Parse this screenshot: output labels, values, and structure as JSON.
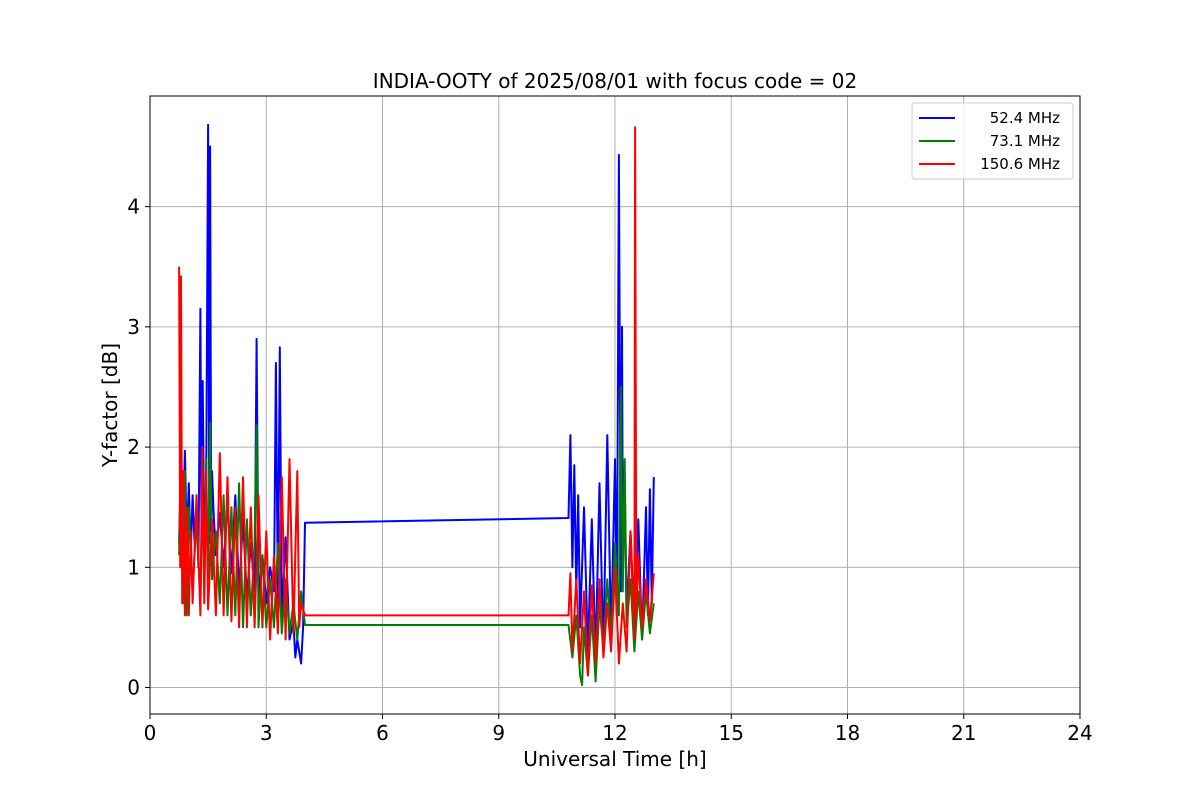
{
  "chart_data": {
    "type": "line",
    "title": "INDIA-OOTY of 2025/08/01 with focus code = 02",
    "xlabel": "Universal Time [h]",
    "ylabel": "Y-factor [dB]",
    "xlim": [
      0,
      24
    ],
    "ylim": [
      -0.22,
      4.92
    ],
    "x_ticks": [
      0,
      3,
      6,
      9,
      12,
      15,
      18,
      21,
      24
    ],
    "y_ticks": [
      0,
      1,
      2,
      3,
      4
    ],
    "grid": true,
    "legend_position": "upper right",
    "series": [
      {
        "name": " 52.4 MHz",
        "color": "#0000ff",
        "x": [
          0.75,
          0.8,
          0.85,
          0.9,
          0.95,
          1.0,
          1.05,
          1.1,
          1.15,
          1.2,
          1.25,
          1.3,
          1.33,
          1.36,
          1.4,
          1.45,
          1.5,
          1.53,
          1.55,
          1.58,
          1.6,
          1.65,
          1.7,
          1.8,
          1.9,
          2.0,
          2.1,
          2.2,
          2.3,
          2.4,
          2.5,
          2.6,
          2.7,
          2.75,
          2.8,
          2.9,
          3.0,
          3.1,
          3.2,
          3.25,
          3.3,
          3.35,
          3.4,
          3.5,
          3.6,
          3.7,
          3.75,
          3.8,
          3.85,
          3.9,
          3.95,
          4.0,
          10.8,
          10.85,
          10.9,
          10.95,
          11.0,
          11.05,
          11.1,
          11.2,
          11.3,
          11.4,
          11.5,
          11.6,
          11.7,
          11.8,
          11.9,
          12.0,
          12.05,
          12.1,
          12.15,
          12.18,
          12.2,
          12.25,
          12.3,
          12.4,
          12.5,
          12.6,
          12.7,
          12.8,
          12.85,
          12.9,
          12.95,
          13.0
        ],
        "y": [
          1.2,
          1.95,
          1.3,
          1.97,
          1.2,
          1.7,
          1.1,
          1.6,
          1.2,
          1.5,
          1.0,
          3.15,
          1.2,
          2.55,
          1.1,
          1.7,
          4.68,
          1.2,
          4.5,
          1.3,
          1.8,
          1.4,
          1.1,
          1.45,
          1.0,
          1.55,
          0.95,
          1.6,
          0.8,
          1.4,
          0.75,
          1.2,
          0.8,
          2.9,
          0.75,
          1.1,
          0.7,
          1.0,
          0.8,
          2.7,
          0.7,
          2.83,
          0.6,
          1.25,
          0.4,
          0.55,
          0.25,
          0.4,
          0.3,
          0.2,
          0.5,
          1.37,
          1.41,
          2.1,
          1.0,
          1.85,
          0.8,
          1.6,
          0.5,
          1.5,
          0.3,
          1.4,
          0.25,
          1.7,
          0.3,
          2.1,
          0.4,
          1.9,
          0.6,
          4.43,
          0.8,
          3.0,
          1.2,
          1.7,
          0.6,
          1.3,
          0.5,
          1.4,
          0.4,
          1.5,
          0.6,
          1.65,
          0.7,
          1.75
        ]
      },
      {
        "name": " 73.1 MHz",
        "color": "#008000",
        "x": [
          0.75,
          0.8,
          0.85,
          0.9,
          0.95,
          1.0,
          1.1,
          1.2,
          1.3,
          1.35,
          1.4,
          1.45,
          1.5,
          1.55,
          1.6,
          1.7,
          1.8,
          1.9,
          2.0,
          2.1,
          2.2,
          2.3,
          2.4,
          2.5,
          2.6,
          2.7,
          2.75,
          2.8,
          2.9,
          3.0,
          3.1,
          3.2,
          3.3,
          3.4,
          3.5,
          3.6,
          3.7,
          3.8,
          3.9,
          4.0,
          10.8,
          10.9,
          11.0,
          11.1,
          11.15,
          11.2,
          11.3,
          11.4,
          11.5,
          11.6,
          11.7,
          11.8,
          11.9,
          12.0,
          12.1,
          12.15,
          12.2,
          12.25,
          12.3,
          12.4,
          12.5,
          12.6,
          12.7,
          12.8,
          12.9,
          13.0
        ],
        "y": [
          1.1,
          2.0,
          0.7,
          1.8,
          0.6,
          1.5,
          0.8,
          1.4,
          0.7,
          1.65,
          0.8,
          1.9,
          0.8,
          2.2,
          0.9,
          1.3,
          0.7,
          1.6,
          0.6,
          1.5,
          0.6,
          1.7,
          0.5,
          1.4,
          0.6,
          1.2,
          2.18,
          0.5,
          1.1,
          0.5,
          0.9,
          0.5,
          1.2,
          0.45,
          0.9,
          0.45,
          0.7,
          0.4,
          0.8,
          0.52,
          0.52,
          0.25,
          0.6,
          0.1,
          0.02,
          0.5,
          0.1,
          0.6,
          0.05,
          0.7,
          0.3,
          0.9,
          0.4,
          1.2,
          0.6,
          2.5,
          0.8,
          1.9,
          0.5,
          0.9,
          0.3,
          0.8,
          0.4,
          0.8,
          0.45,
          0.7
        ]
      },
      {
        "name": "150.6 MHz",
        "color": "#ff0000",
        "x": [
          0.75,
          0.78,
          0.8,
          0.83,
          0.86,
          0.9,
          0.95,
          1.0,
          1.05,
          1.1,
          1.2,
          1.3,
          1.35,
          1.4,
          1.45,
          1.5,
          1.6,
          1.7,
          1.8,
          1.9,
          2.0,
          2.1,
          2.2,
          2.3,
          2.4,
          2.5,
          2.6,
          2.7,
          2.8,
          2.9,
          3.0,
          3.1,
          3.2,
          3.3,
          3.4,
          3.5,
          3.6,
          3.7,
          3.8,
          3.85,
          3.9,
          4.0,
          10.8,
          10.85,
          10.9,
          11.0,
          11.1,
          11.2,
          11.3,
          11.4,
          11.5,
          11.6,
          11.7,
          11.8,
          11.9,
          12.0,
          12.1,
          12.2,
          12.3,
          12.4,
          12.5,
          12.52,
          12.55,
          12.6,
          12.7,
          12.8,
          12.9,
          13.0
        ],
        "y": [
          3.5,
          1.0,
          3.42,
          0.7,
          1.8,
          0.6,
          1.5,
          0.6,
          1.3,
          0.7,
          1.6,
          0.6,
          2.0,
          0.7,
          1.8,
          0.65,
          1.4,
          0.6,
          1.95,
          0.6,
          1.75,
          0.55,
          1.5,
          0.5,
          1.75,
          0.5,
          1.5,
          0.5,
          1.6,
          0.5,
          1.3,
          0.4,
          1.1,
          0.45,
          1.75,
          0.4,
          1.9,
          0.45,
          1.8,
          0.5,
          0.7,
          0.6,
          0.6,
          0.95,
          0.3,
          0.9,
          0.2,
          0.8,
          0.1,
          0.85,
          0.2,
          0.9,
          0.25,
          0.7,
          0.3,
          1.0,
          0.2,
          0.7,
          0.3,
          1.3,
          0.4,
          4.66,
          0.6,
          1.1,
          0.5,
          0.9,
          0.55,
          0.95
        ]
      }
    ]
  }
}
